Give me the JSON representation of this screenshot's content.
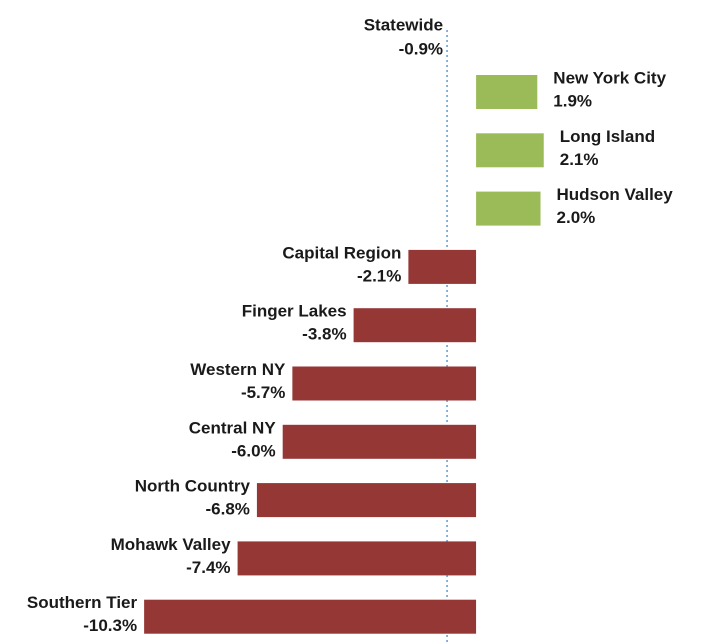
{
  "chart_data": {
    "type": "bar",
    "orientation": "horizontal",
    "categories": [
      "New York City",
      "Long Island",
      "Hudson Valley",
      "Capital Region",
      "Finger Lakes",
      "Western NY",
      "Central NY",
      "North Country",
      "Mohawk Valley",
      "Southern Tier"
    ],
    "values": [
      1.9,
      2.1,
      2.0,
      -2.1,
      -3.8,
      -5.7,
      -6.0,
      -6.8,
      -7.4,
      -10.3
    ],
    "value_labels": [
      "1.9%",
      "2.1%",
      "2.0%",
      "-2.1%",
      "-3.8%",
      "-5.7%",
      "-6.0%",
      "-6.8%",
      "-7.4%",
      "-10.3%"
    ],
    "positive_color": "#9bbb59",
    "negative_color": "#953735",
    "reference": {
      "name": "Statewide",
      "value": -0.9,
      "value_label": "-0.9%",
      "color": "#5b9bd5"
    },
    "xlim": [
      -10.8,
      6.7
    ]
  }
}
